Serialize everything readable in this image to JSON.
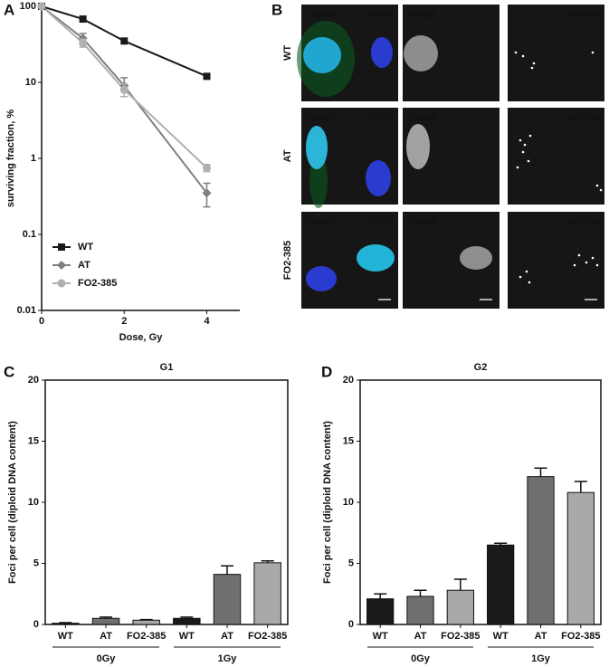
{
  "panel_labels": [
    "A",
    "B",
    "C",
    "D"
  ],
  "chart_data": [
    {
      "type": "line",
      "x_label": "Dose, Gy",
      "y_label": "surviving fraction, %",
      "x": [
        0,
        1,
        2,
        4
      ],
      "xlim": [
        0,
        4.8
      ],
      "xticks": [
        0,
        2,
        4
      ],
      "ylim": [
        0.01,
        100
      ],
      "yticks": [
        0.01,
        0.1,
        1,
        10,
        100
      ],
      "log_y": true,
      "legend": "lower-left",
      "series": [
        {
          "name": "WT",
          "color": "#1a1a1a",
          "marker": "square",
          "values": [
            100,
            68,
            35,
            12
          ]
        },
        {
          "name": "AT",
          "color": "#7f7f7f",
          "marker": "diamond",
          "values": [
            100,
            38,
            9,
            0.35
          ],
          "errors": [
            null,
            6,
            2.5,
            0.12
          ]
        },
        {
          "name": "FO2-385",
          "color": "#b0b0b0",
          "marker": "circle",
          "values": [
            100,
            33,
            8,
            0.75
          ],
          "errors": [
            null,
            4,
            1.5,
            0.08
          ]
        }
      ]
    },
    {
      "type": "bar",
      "title": "G1",
      "y_label": "Foci per cell (diploid DNA content)",
      "categories": [
        "WT",
        "AT",
        "FO2-385",
        "WT",
        "AT",
        "FO2-385"
      ],
      "groups": [
        "0Gy",
        "1Gy"
      ],
      "values": [
        0.1,
        0.5,
        0.35,
        0.5,
        4.1,
        5.05
      ],
      "errors": [
        0.05,
        0.1,
        0.05,
        0.1,
        0.7,
        0.15
      ],
      "colors": [
        "#1a1a1a",
        "#707070",
        "#a9a9a9",
        "#1a1a1a",
        "#707070",
        "#a9a9a9"
      ],
      "ylim": [
        0,
        20
      ],
      "yticks": [
        0,
        5,
        10,
        15,
        20
      ]
    },
    {
      "type": "bar",
      "title": "G2",
      "y_label": "Foci per cell (diploid DNA content)",
      "categories": [
        "WT",
        "AT",
        "FO2-385",
        "WT",
        "AT",
        "FO2-385"
      ],
      "groups": [
        "0Gy",
        "1Gy"
      ],
      "values": [
        2.1,
        2.3,
        2.8,
        6.5,
        12.1,
        10.8
      ],
      "errors": [
        0.4,
        0.5,
        0.9,
        0.15,
        0.7,
        0.9
      ],
      "colors": [
        "#1a1a1a",
        "#707070",
        "#a9a9a9",
        "#1a1a1a",
        "#707070",
        "#a9a9a9"
      ],
      "ylim": [
        0,
        20
      ],
      "yticks": [
        0,
        5,
        10,
        15,
        20
      ]
    }
  ],
  "micrographs": {
    "rows": [
      "WT",
      "AT",
      "FO2-385"
    ],
    "merge_labels": [
      "CenpF",
      "γH2AX"
    ],
    "single_labels": [
      "CenpF",
      "γH2AX"
    ]
  }
}
